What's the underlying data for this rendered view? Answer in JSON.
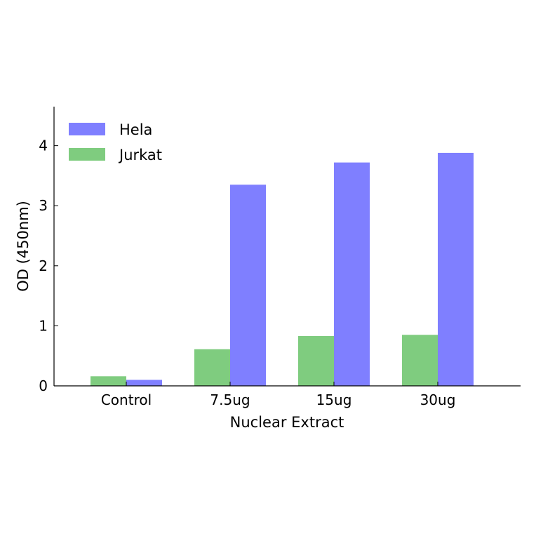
{
  "chart_data": {
    "type": "bar",
    "title": "",
    "xlabel": "Nuclear Extract",
    "ylabel": "OD (450nm)",
    "categories": [
      "Control",
      "7.5ug",
      "15ug",
      "30ug"
    ],
    "series": [
      {
        "name": "Jurkat",
        "color": "#7fcc7f",
        "values": [
          0.16,
          0.61,
          0.83,
          0.85
        ]
      },
      {
        "name": "Hela",
        "color": "#7f7fff",
        "values": [
          0.1,
          3.35,
          3.72,
          3.88
        ]
      }
    ],
    "yticks": [
      "0",
      "1",
      "2",
      "3",
      "4"
    ],
    "ylim": [
      0,
      4.65
    ],
    "legend": {
      "position": "top-left",
      "order": [
        "Hela",
        "Jurkat"
      ]
    },
    "grid": false
  }
}
